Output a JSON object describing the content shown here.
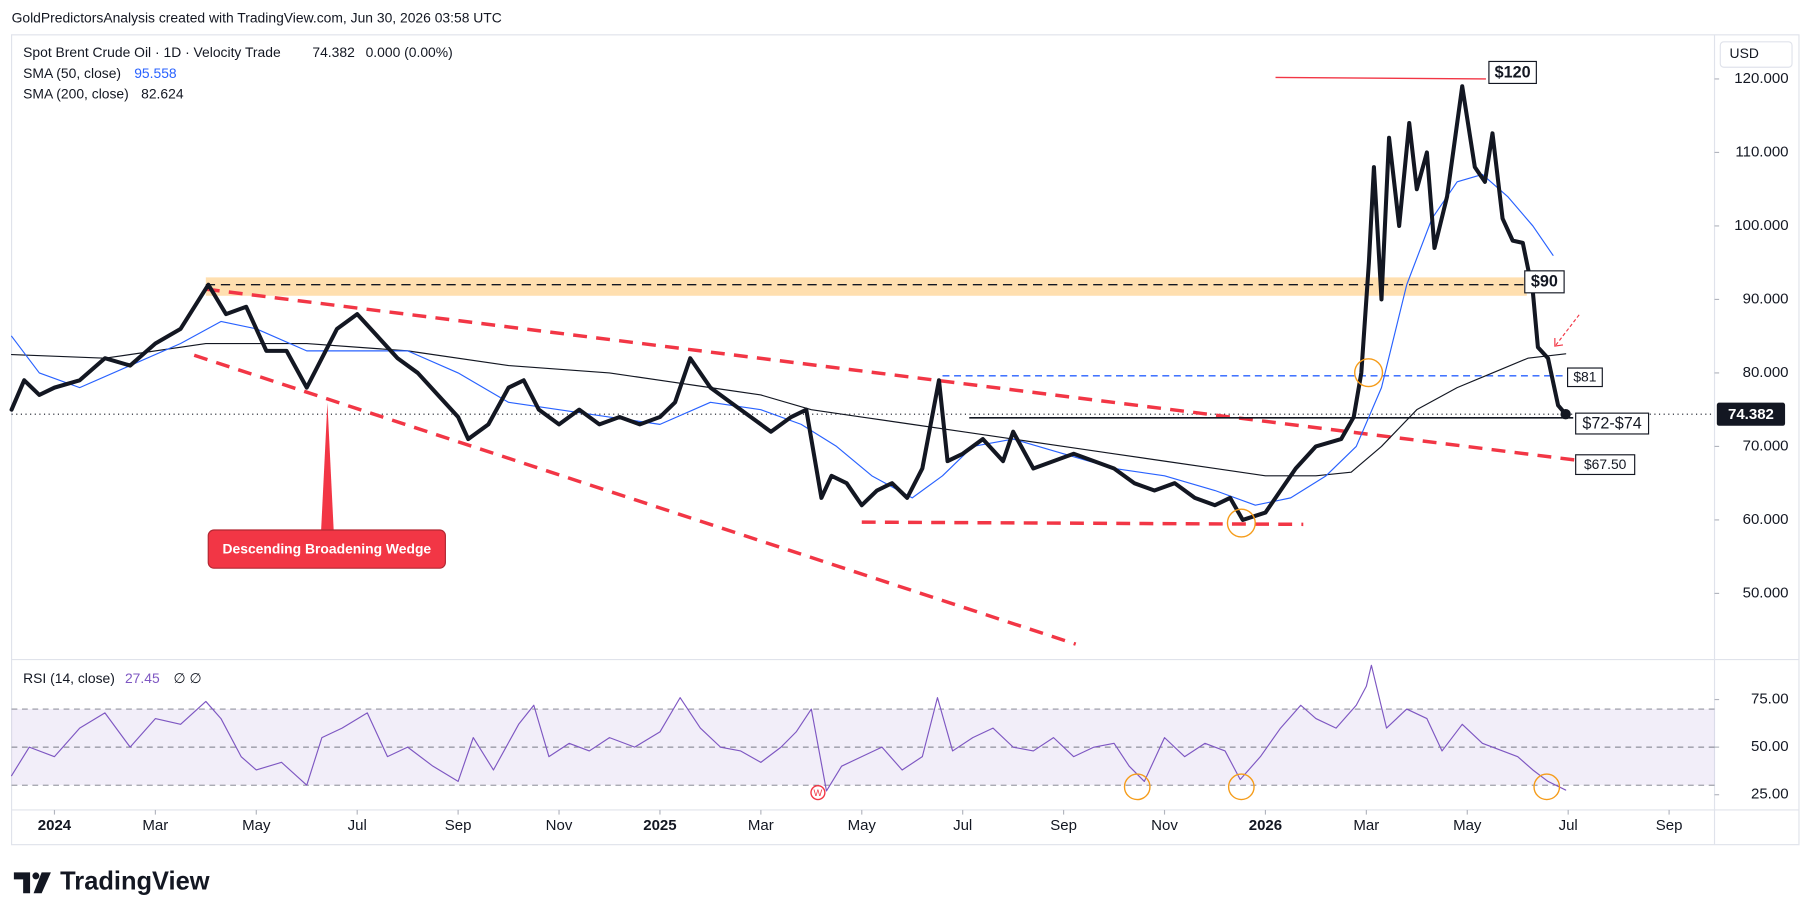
{
  "header": {
    "attribution": "GoldPredictorsAnalysis created with TradingView.com, Jun 30, 2026 03:58 UTC"
  },
  "footer": {
    "brand": "TradingView"
  },
  "chart_data": [
    {
      "type": "line",
      "title": "Spot Brent Crude Oil · 1D · Velocity Trade",
      "last": 74.382,
      "change": "0.000 (0.00%)",
      "currency": "USD",
      "grid": false,
      "xlim": [
        -0.85,
        32.9
      ],
      "xticks": [
        {
          "value": 0,
          "label": "2024"
        },
        {
          "value": 2,
          "label": "Mar"
        },
        {
          "value": 4,
          "label": "May"
        },
        {
          "value": 6,
          "label": "Jul"
        },
        {
          "value": 8,
          "label": "Sep"
        },
        {
          "value": 10,
          "label": "Nov"
        },
        {
          "value": 12,
          "label": "2025"
        },
        {
          "value": 14,
          "label": "Mar"
        },
        {
          "value": 16,
          "label": "May"
        },
        {
          "value": 18,
          "label": "Jul"
        },
        {
          "value": 20,
          "label": "Sep"
        },
        {
          "value": 22,
          "label": "Nov"
        },
        {
          "value": 24,
          "label": "2026"
        },
        {
          "value": 26,
          "label": "Mar"
        },
        {
          "value": 28,
          "label": "May"
        },
        {
          "value": 30,
          "label": "Jul"
        },
        {
          "value": 32,
          "label": "Sep"
        }
      ],
      "ylim": [
        41,
        126
      ],
      "yticks": [
        {
          "value": 50,
          "label": "50.000"
        },
        {
          "value": 60,
          "label": "60.000"
        },
        {
          "value": 70,
          "label": "70.000"
        },
        {
          "value": 80,
          "label": "80.000"
        },
        {
          "value": 90,
          "label": "90.000"
        },
        {
          "value": 100,
          "label": "100.000"
        },
        {
          "value": 110,
          "label": "110.000"
        },
        {
          "value": 120,
          "label": "120.000"
        }
      ],
      "series": [
        {
          "color": "#131722",
          "x": [
            -0.85,
            -0.6,
            -0.3,
            0,
            0.5,
            1,
            1.5,
            2,
            2.5,
            3.05,
            3.4,
            3.8,
            4.2,
            4.6,
            5,
            5.3,
            5.6,
            6,
            6.4,
            6.8,
            7.2,
            7.6,
            8,
            8.2,
            8.6,
            9,
            9.3,
            9.6,
            10,
            10.4,
            10.8,
            11.2,
            11.6,
            12,
            12.3,
            12.6,
            13,
            13.4,
            13.8,
            14.2,
            14.6,
            14.9,
            15.2,
            15.4,
            15.7,
            16,
            16.3,
            16.6,
            16.9,
            17.2,
            17.53,
            17.7,
            18,
            18.4,
            18.8,
            19,
            19.4,
            19.8,
            20.2,
            20.6,
            21,
            21.4,
            21.8,
            22.2,
            22.6,
            23,
            23.3,
            23.55,
            24,
            24.3,
            24.6,
            25,
            25.5,
            25.75,
            25.9,
            26.05,
            26.15,
            26.3,
            26.45,
            26.65,
            26.85,
            27.0,
            27.2,
            27.35,
            27.6,
            27.9,
            28.15,
            28.35,
            28.5,
            28.7,
            28.9,
            29.1,
            29.3,
            29.4,
            29.6,
            29.8,
            29.95
          ],
          "values": [
            75,
            79,
            77,
            78,
            79,
            82,
            81,
            84,
            86,
            92,
            88,
            89,
            83,
            83,
            78,
            82,
            86,
            88,
            85,
            82,
            80,
            77,
            74,
            71,
            73,
            78,
            79,
            75,
            73,
            75,
            73,
            74,
            73,
            74,
            76,
            82,
            78,
            76,
            74,
            72,
            74,
            75,
            63,
            66,
            65,
            62,
            64,
            65,
            63,
            67,
            79,
            68,
            69,
            71,
            68,
            72,
            67,
            68,
            69,
            68,
            67,
            65,
            64,
            65,
            63,
            62,
            63,
            60,
            61,
            64,
            67,
            70,
            71,
            74,
            80,
            95,
            108,
            90,
            112,
            100,
            114,
            105,
            110,
            97,
            104,
            119,
            108,
            106,
            112.6,
            101,
            98,
            97.7,
            91,
            83.5,
            82,
            75.6,
            74.382
          ]
        },
        {
          "name": "SMA (50, close)",
          "color": "#2962ff",
          "last": 95.558,
          "x": [
            -0.85,
            -0.3,
            0.5,
            1.5,
            2.5,
            3.3,
            4,
            5,
            6,
            7,
            8,
            9,
            10,
            11,
            12,
            13,
            14,
            14.8,
            15.5,
            16.2,
            17,
            17.6,
            18.2,
            19,
            20,
            21,
            22,
            23,
            23.8,
            24.5,
            25.2,
            25.8,
            26.3,
            26.8,
            27.3,
            27.8,
            28.3,
            28.8,
            29.3,
            29.7
          ],
          "values": [
            85,
            80,
            78,
            81,
            84,
            87,
            86,
            83,
            83,
            83,
            80,
            76,
            75,
            74,
            73,
            76,
            75,
            73,
            70,
            66,
            63,
            66,
            70,
            71,
            69,
            67,
            66,
            64,
            62,
            63,
            66,
            70,
            78,
            92,
            101,
            106,
            107,
            104,
            100,
            96
          ]
        },
        {
          "name": "SMA (200, close)",
          "color": "#131722",
          "last": 82.624,
          "x": [
            -0.85,
            1,
            3,
            5,
            7,
            9,
            11,
            13,
            14,
            15,
            16,
            17,
            18,
            19,
            20,
            21,
            22,
            23,
            24,
            25,
            25.7,
            26.3,
            27,
            27.8,
            28.5,
            29.2,
            29.95
          ],
          "values": [
            82.5,
            82,
            84,
            84,
            83,
            81,
            80,
            78,
            77,
            75,
            74,
            73,
            72,
            71,
            70,
            69,
            68,
            67,
            66,
            66,
            66.5,
            70,
            75,
            78,
            80,
            82,
            82.6
          ]
        }
      ],
      "zone": {
        "x": [
          3.0,
          29.18
        ],
        "y": [
          90.5,
          93
        ],
        "line": 92
      },
      "trendlines": [
        {
          "style": "red-dashed",
          "x": [
            3.0,
            30.2
          ],
          "y": [
            91.4,
            68.1
          ]
        },
        {
          "style": "red-dashed",
          "x": [
            2.77,
            20.24
          ],
          "y": [
            82.4,
            43.1
          ]
        },
        {
          "style": "red-dashed",
          "x": [
            16.0,
            24.75
          ],
          "y": [
            59.7,
            59.4
          ]
        },
        {
          "style": "blue-dashed",
          "x": [
            17.6,
            29.9
          ],
          "y": [
            79.6,
            79.6
          ]
        },
        {
          "style": "black",
          "x": [
            18.13,
            30.1
          ],
          "y": [
            73.9,
            73.9
          ]
        },
        {
          "style": "red",
          "x": [
            24.2,
            28.37
          ],
          "y": [
            120.2,
            120
          ]
        }
      ],
      "annotations": {
        "top": "$120",
        "resistance": "$90",
        "level": "$81",
        "support": "$72-$74",
        "target": "$67.50",
        "pattern": "Descending Broadening Wedge"
      }
    },
    {
      "type": "line",
      "title": "RSI (14, close)",
      "last": 27.45,
      "extra": "∅ ∅",
      "xlim": [
        -0.85,
        32.9
      ],
      "ylim": [
        17,
        96
      ],
      "yticks": [
        {
          "value": 25,
          "label": "25.00"
        },
        {
          "value": 50,
          "label": "50.00"
        },
        {
          "value": 75,
          "label": "75.00"
        }
      ],
      "band": [
        30,
        70
      ],
      "levels": [
        30,
        50,
        70
      ],
      "series": [
        {
          "color": "#7e57c2",
          "x": [
            -0.85,
            -0.5,
            0,
            0.5,
            1.0,
            1.5,
            2.0,
            2.5,
            3.0,
            3.3,
            3.7,
            4,
            4.5,
            5,
            5.3,
            5.7,
            6.2,
            6.6,
            7,
            7.5,
            8,
            8.3,
            8.7,
            9.2,
            9.5,
            9.8,
            10.2,
            10.6,
            11,
            11.5,
            12,
            12.4,
            12.8,
            13.2,
            13.6,
            14,
            14.4,
            14.7,
            15,
            15.3,
            15.6,
            16,
            16.4,
            16.8,
            17.2,
            17.5,
            17.8,
            18.2,
            18.6,
            19,
            19.4,
            19.8,
            20.2,
            20.6,
            21,
            21.3,
            21.6,
            22,
            22.4,
            22.8,
            23.2,
            23.5,
            23.9,
            24.3,
            24.7,
            25,
            25.4,
            25.8,
            26.0,
            26.1,
            26.4,
            26.8,
            27.2,
            27.5,
            27.9,
            28.3,
            28.7,
            29.0,
            29.3,
            29.6,
            29.95
          ],
          "values": [
            35,
            50,
            45,
            60,
            68,
            50,
            65,
            62,
            74,
            65,
            45,
            38,
            42,
            30,
            55,
            60,
            68,
            45,
            50,
            40,
            32,
            55,
            38,
            62,
            72,
            45,
            52,
            48,
            55,
            50,
            58,
            76,
            60,
            50,
            48,
            42,
            50,
            58,
            70,
            27,
            40,
            45,
            50,
            38,
            45,
            76,
            48,
            55,
            60,
            50,
            48,
            55,
            45,
            50,
            52,
            40,
            32,
            55,
            45,
            52,
            48,
            33,
            45,
            60,
            72,
            65,
            60,
            72,
            82,
            93,
            60,
            70,
            65,
            48,
            62,
            52,
            48,
            45,
            38,
            32,
            27.45
          ]
        }
      ],
      "annotations": {
        "w": "W"
      }
    }
  ]
}
